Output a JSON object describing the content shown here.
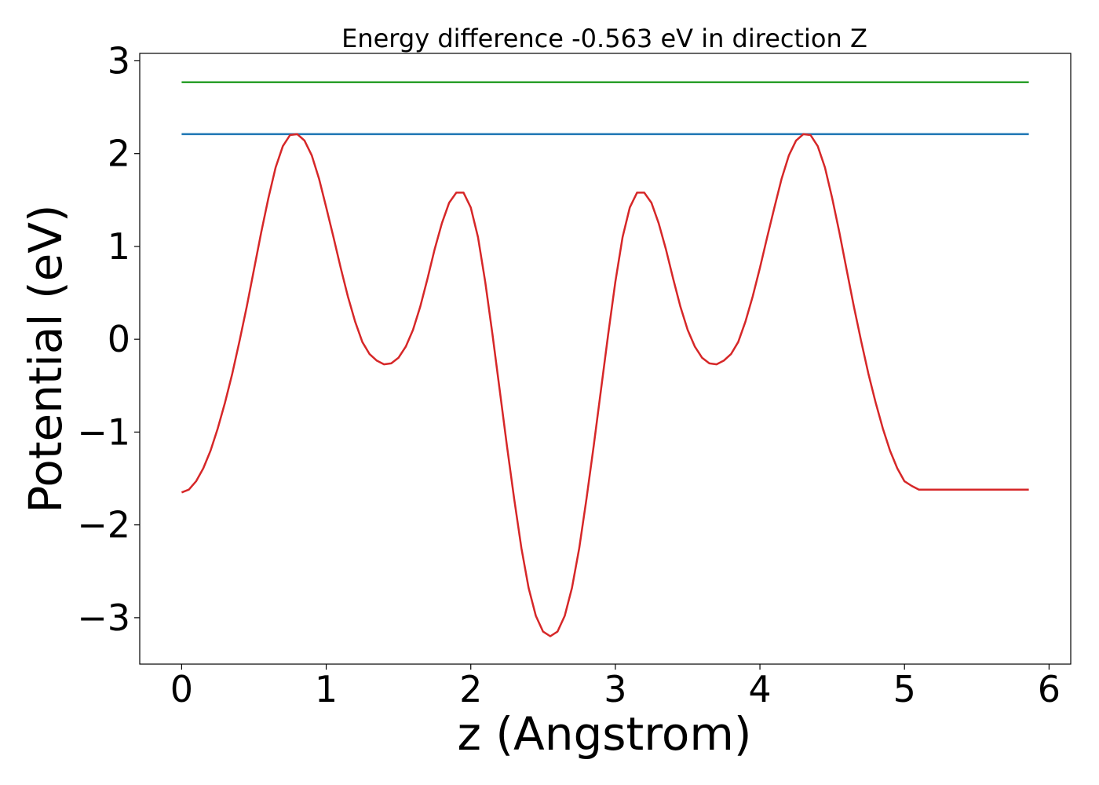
{
  "chart_data": {
    "type": "line",
    "title": "Energy difference -0.563 eV in direction Z",
    "xlabel": "z (Angstrom)",
    "ylabel": "Potential (eV)",
    "xlim": [
      -0.29,
      6.15
    ],
    "ylim": [
      -3.5,
      3.08
    ],
    "x_ticks": [
      0,
      1,
      2,
      3,
      4,
      5,
      6
    ],
    "x_tick_labels": [
      "0",
      "1",
      "2",
      "3",
      "4",
      "5",
      "6"
    ],
    "y_ticks": [
      -3,
      -2,
      -1,
      0,
      1,
      2,
      3
    ],
    "y_tick_labels": [
      "−3",
      "−2",
      "−1",
      "0",
      "1",
      "2",
      "3"
    ],
    "grid": false,
    "series": [
      {
        "color": "#2ca02c",
        "x": [
          0,
          5.86
        ],
        "y": [
          2.77,
          2.77
        ]
      },
      {
        "color": "#1f77b4",
        "x": [
          0,
          5.86
        ],
        "y": [
          2.21,
          2.21
        ]
      },
      {
        "color": "#d62728",
        "x": [
          0,
          0.05,
          0.1,
          0.15,
          0.2,
          0.25,
          0.3,
          0.35,
          0.4,
          0.45,
          0.5,
          0.55,
          0.6,
          0.65,
          0.7,
          0.75,
          0.8,
          0.85,
          0.9,
          0.95,
          1.0,
          1.05,
          1.1,
          1.15,
          1.2,
          1.25,
          1.3,
          1.35,
          1.4,
          1.45,
          1.5,
          1.55,
          1.6,
          1.65,
          1.7,
          1.75,
          1.8,
          1.85,
          1.9,
          1.95,
          2.0,
          2.05,
          2.1,
          2.15,
          2.2,
          2.25,
          2.3,
          2.35,
          2.4,
          2.45,
          2.5,
          2.55,
          2.6,
          2.65,
          2.7,
          2.75,
          2.8,
          2.85,
          2.9,
          2.95,
          3.0,
          3.05,
          3.1,
          3.15,
          3.2,
          3.25,
          3.3,
          3.35,
          3.4,
          3.45,
          3.5,
          3.55,
          3.6,
          3.65,
          3.7,
          3.75,
          3.8,
          3.85,
          3.9,
          3.95,
          4.0,
          4.05,
          4.1,
          4.15,
          4.2,
          4.25,
          4.3,
          4.35,
          4.4,
          4.45,
          4.5,
          4.55,
          4.6,
          4.65,
          4.7,
          4.75,
          4.8,
          4.85,
          4.9,
          4.95,
          5.0,
          5.05,
          5.1,
          5.15,
          5.2,
          5.25,
          5.3,
          5.35,
          5.4,
          5.45,
          5.5,
          5.55,
          5.6,
          5.65,
          5.7,
          5.75,
          5.8,
          5.86
        ],
        "y": [
          -1.65,
          -1.62,
          -1.53,
          -1.39,
          -1.2,
          -0.96,
          -0.68,
          -0.37,
          -0.02,
          0.35,
          0.75,
          1.15,
          1.52,
          1.85,
          2.08,
          2.2,
          2.21,
          2.14,
          1.98,
          1.73,
          1.42,
          1.1,
          0.77,
          0.46,
          0.19,
          -0.03,
          -0.16,
          -0.23,
          -0.27,
          -0.26,
          -0.2,
          -0.08,
          0.1,
          0.35,
          0.65,
          0.97,
          1.25,
          1.47,
          1.58,
          1.58,
          1.42,
          1.1,
          0.62,
          0.05,
          -0.55,
          -1.15,
          -1.72,
          -2.25,
          -2.68,
          -2.98,
          -3.15,
          -3.2,
          -3.15,
          -2.98,
          -2.68,
          -2.25,
          -1.72,
          -1.15,
          -0.55,
          0.05,
          0.62,
          1.1,
          1.42,
          1.58,
          1.58,
          1.47,
          1.25,
          0.97,
          0.65,
          0.35,
          0.1,
          -0.08,
          -0.2,
          -0.26,
          -0.27,
          -0.23,
          -0.16,
          -0.03,
          0.19,
          0.46,
          0.77,
          1.1,
          1.42,
          1.73,
          1.98,
          2.14,
          2.21,
          2.2,
          2.08,
          1.85,
          1.52,
          1.15,
          0.75,
          0.35,
          -0.02,
          -0.37,
          -0.68,
          -0.96,
          -1.2,
          -1.39,
          -1.53,
          -1.58,
          -1.62,
          -1.62,
          -1.62,
          -1.62,
          -1.62,
          -1.62,
          -1.62,
          -1.62,
          -1.62,
          -1.62,
          -1.62,
          -1.62,
          -1.62,
          -1.62,
          -1.62,
          -1.62
        ]
      }
    ]
  }
}
